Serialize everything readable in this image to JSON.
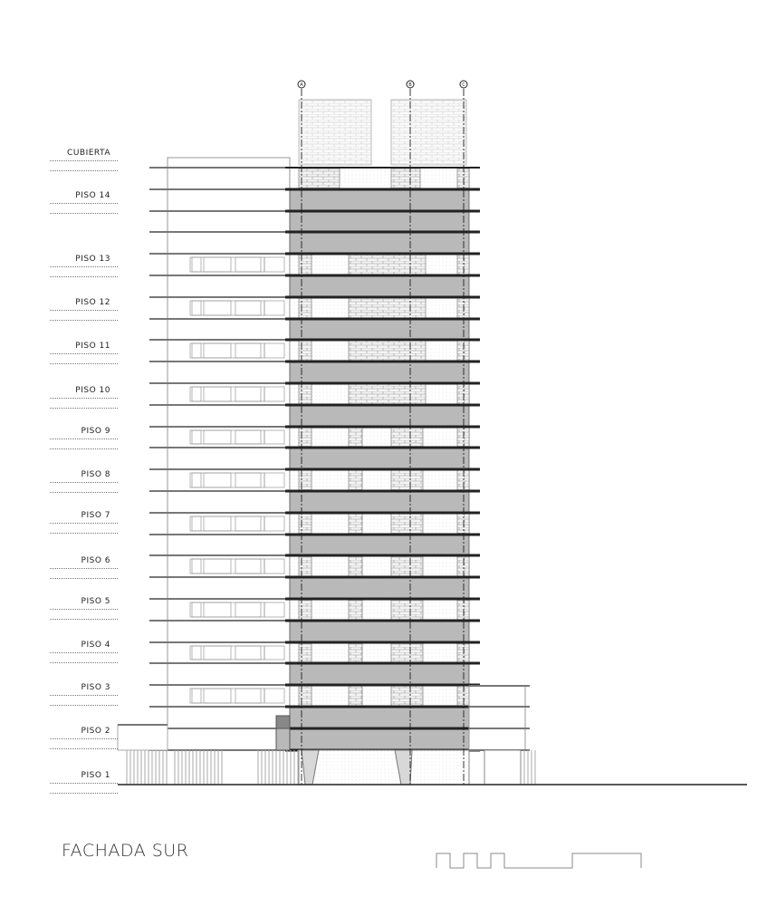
{
  "title": "FACHADA SUR",
  "levels": [
    {
      "label": "CUBIERTA"
    },
    {
      "label": "PISO 14"
    },
    {
      "label": "PISO 13"
    },
    {
      "label": "PISO 12"
    },
    {
      "label": "PISO 11"
    },
    {
      "label": "PISO 10"
    },
    {
      "label": "PISO 9"
    },
    {
      "label": "PISO 8"
    },
    {
      "label": "PISO 7"
    },
    {
      "label": "PISO 6"
    },
    {
      "label": "PISO 5"
    },
    {
      "label": "PISO 4"
    },
    {
      "label": "PISO 3"
    },
    {
      "label": "PISO 2"
    },
    {
      "label": "PISO 1"
    }
  ],
  "axes": [
    {
      "label": "A"
    },
    {
      "label": "B"
    },
    {
      "label": "C"
    }
  ],
  "colors": {
    "band": "#b9b9b9",
    "slab": "#222222",
    "line": "#888888",
    "brick": "#f2f2f2"
  }
}
